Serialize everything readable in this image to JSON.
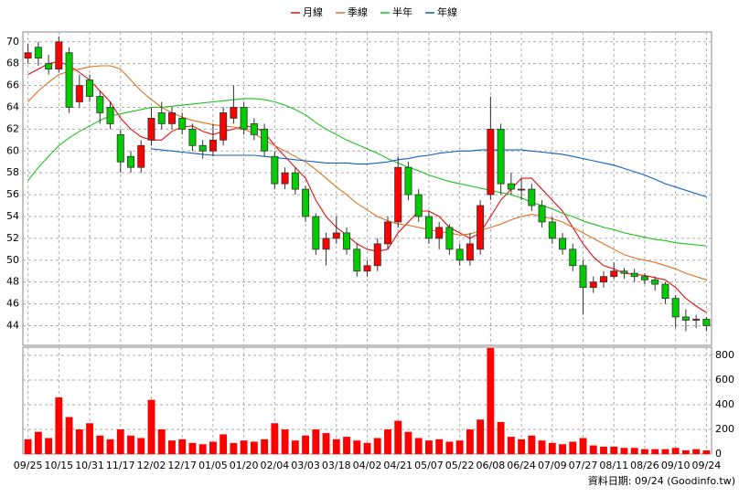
{
  "chart_data": {
    "type": "candlestick",
    "categories": [
      "09/25",
      null,
      null,
      "10/15",
      null,
      null,
      "10/31",
      null,
      null,
      "11/17",
      null,
      null,
      "12/02",
      null,
      null,
      "12/17",
      null,
      null,
      "01/05",
      null,
      null,
      "01/20",
      null,
      null,
      "02/04",
      null,
      null,
      "03/03",
      null,
      null,
      "03/18",
      null,
      null,
      "04/02",
      null,
      null,
      "04/21",
      null,
      null,
      "05/07",
      null,
      null,
      "05/22",
      null,
      null,
      "06/08",
      null,
      null,
      "06/24",
      null,
      null,
      "07/09",
      null,
      null,
      "07/27",
      null,
      null,
      "08/11",
      null,
      null,
      "08/26",
      null,
      null,
      "09/10",
      null,
      null,
      "09/24"
    ],
    "open": [
      68.5,
      69.5,
      68,
      67.5,
      69,
      64.5,
      66.5,
      65,
      64,
      61.5,
      59.5,
      58.5,
      61,
      63.5,
      62.5,
      63,
      62,
      60.5,
      60,
      61,
      63,
      64,
      62.5,
      62,
      59.5,
      57,
      58,
      56.5,
      54,
      51,
      52,
      52.5,
      51,
      49,
      49.5,
      51.5,
      53.5,
      58.5,
      56,
      54,
      52,
      53,
      51,
      50,
      51,
      56,
      62,
      57,
      56.5,
      56.5,
      55,
      53.5,
      52,
      51,
      49.5,
      47.5,
      48,
      48.5,
      49,
      48.8,
      48.5,
      48.2,
      47.8,
      46.5,
      44.8,
      44.5,
      44.6
    ],
    "high": [
      69.8,
      70,
      68.8,
      70.5,
      69.5,
      67,
      67,
      65.5,
      64.5,
      62,
      60,
      61,
      64,
      64.5,
      64,
      63.5,
      62.5,
      61,
      62.5,
      64,
      66,
      64.5,
      63,
      62.5,
      60,
      58.5,
      58.5,
      56.8,
      54.3,
      52.5,
      54,
      53,
      51.5,
      50,
      52,
      54,
      59.5,
      59,
      56.5,
      54.5,
      53.5,
      53.3,
      51.5,
      52.5,
      55.5,
      65,
      62.5,
      58,
      57.5,
      57,
      55.5,
      54,
      52.5,
      51.5,
      50,
      48.5,
      49,
      49.8,
      49.3,
      49.2,
      48.8,
      48.5,
      48,
      46.8,
      45.5,
      45,
      44.8
    ],
    "low": [
      68,
      67.8,
      67,
      67.2,
      63.5,
      64,
      64.5,
      62.5,
      62,
      58,
      58,
      58,
      60.5,
      62,
      62,
      61.5,
      60,
      59.3,
      59.5,
      60.5,
      62.5,
      61.5,
      61,
      59.5,
      56.5,
      56.5,
      56,
      53.5,
      50.5,
      49.5,
      51.5,
      50.5,
      48.5,
      48.5,
      49,
      51,
      53,
      55.5,
      53.5,
      51.5,
      51,
      50.5,
      49.5,
      49.5,
      50.5,
      55.5,
      56,
      56,
      55.5,
      54.5,
      53,
      51.5,
      50.5,
      49,
      45,
      47,
      47.5,
      48.3,
      48.3,
      48,
      47.8,
      47.2,
      46,
      43.8,
      43.5,
      43.8,
      43.5
    ],
    "close": [
      69,
      68.5,
      67.5,
      70,
      64,
      66,
      65,
      63.5,
      62.5,
      59,
      58.5,
      60.5,
      63,
      62.5,
      63.5,
      62,
      60.5,
      60,
      61,
      63.5,
      64,
      62,
      61.5,
      60,
      57,
      58,
      56.5,
      54,
      51,
      52,
      52.5,
      51,
      49,
      49.5,
      51.5,
      53.5,
      58.5,
      56,
      54,
      52,
      53,
      51,
      50,
      51.5,
      55,
      62,
      57,
      56.5,
      56.5,
      55,
      53.5,
      52,
      51,
      49.5,
      47.5,
      48,
      48.5,
      49,
      48.8,
      48.5,
      48.2,
      47.8,
      46.5,
      44.8,
      44.5,
      44.6,
      44
    ],
    "up_color": "#ff0000",
    "down_color": "#00cc00",
    "ylim": [
      42.2,
      70.9
    ],
    "yticks": [
      44,
      46,
      48,
      50,
      52,
      54,
      56,
      58,
      60,
      62,
      64,
      66,
      68,
      70
    ],
    "grid": true,
    "series": [
      {
        "name": "月線",
        "color": "#e01010",
        "values": [
          67,
          67.5,
          68,
          68.2,
          67.8,
          67.2,
          66.5,
          65.5,
          64.5,
          63,
          62,
          61.3,
          61,
          61,
          61.8,
          62.2,
          62.3,
          61.8,
          61.5,
          61.8,
          62,
          62.3,
          62.2,
          61.7,
          60.5,
          59.5,
          58.5,
          57.5,
          55.5,
          54,
          53,
          52.3,
          51.5,
          51,
          50.8,
          51,
          52.5,
          53.5,
          54.5,
          54.5,
          54,
          53,
          52.5,
          52,
          52.5,
          54,
          55.5,
          56.5,
          57.5,
          57.5,
          56.5,
          55.5,
          54.5,
          53,
          51.5,
          50.3,
          49.5,
          49.2,
          48.8,
          48.7,
          48.6,
          48.4,
          48.2,
          47.5,
          46.5,
          45.8,
          45.2
        ]
      },
      {
        "name": "季線",
        "color": "#e07020",
        "values": [
          64.5,
          65.5,
          66.3,
          67,
          67.3,
          67.5,
          67.7,
          67.8,
          67.8,
          67.5,
          66.5,
          65.5,
          64.7,
          64,
          63.5,
          63.1,
          62.8,
          62.6,
          62.4,
          62.3,
          62.2,
          62,
          61.6,
          61,
          60.5,
          60,
          59.5,
          59,
          58.3,
          57.5,
          56.7,
          56,
          55.2,
          54.6,
          54,
          53.6,
          53.3,
          53.2,
          53,
          52.8,
          52.6,
          52.5,
          52.3,
          52.4,
          52.7,
          53,
          53.3,
          53.7,
          54,
          54.2,
          54,
          53.8,
          53.5,
          53,
          52.5,
          52,
          51.5,
          51,
          50.5,
          50.2,
          50,
          49.8,
          49.5,
          49.2,
          48.8,
          48.5,
          48.2
        ]
      },
      {
        "name": "半年",
        "color": "#20c020",
        "values": [
          57.3,
          58.5,
          59.5,
          60.5,
          61.2,
          61.8,
          62.3,
          62.8,
          63.2,
          63.4,
          63.6,
          63.8,
          64,
          64,
          64.1,
          64.2,
          64.3,
          64.4,
          64.5,
          64.6,
          64.7,
          64.8,
          64.8,
          64.7,
          64.5,
          64.2,
          63.8,
          63.3,
          62.6,
          62,
          61.5,
          61,
          60.6,
          60.2,
          59.8,
          59.3,
          58.9,
          58.5,
          58.2,
          57.8,
          57.5,
          57.2,
          57,
          56.8,
          56.6,
          56.4,
          56.2,
          56,
          55.7,
          55.3,
          55,
          54.7,
          54.3,
          54,
          53.6,
          53.3,
          53,
          52.8,
          52.5,
          52.3,
          52.1,
          51.9,
          51.8,
          51.6,
          51.5,
          51.4,
          51.3
        ]
      },
      {
        "name": "年線",
        "color": "#1060c0",
        "values": [
          null,
          null,
          null,
          null,
          null,
          null,
          null,
          null,
          null,
          null,
          null,
          null,
          60.2,
          60.1,
          60,
          59.9,
          59.8,
          59.7,
          59.6,
          59.6,
          59.6,
          59.6,
          59.6,
          59.5,
          59.4,
          59.3,
          59.2,
          59.1,
          59,
          58.9,
          58.9,
          58.9,
          58.8,
          58.8,
          58.9,
          59,
          59.2,
          59.3,
          59.5,
          59.6,
          59.8,
          59.9,
          60,
          60,
          60.1,
          60.1,
          60.1,
          60.1,
          60.1,
          60,
          59.9,
          59.8,
          59.7,
          59.5,
          59.3,
          59.1,
          58.9,
          58.7,
          58.4,
          58.1,
          57.8,
          57.4,
          57,
          56.7,
          56.4,
          56.1,
          55.8
        ]
      }
    ],
    "volume": {
      "color": "#ff0000",
      "values": [
        120,
        180,
        130,
        460,
        300,
        200,
        250,
        150,
        120,
        200,
        150,
        130,
        440,
        200,
        110,
        120,
        90,
        80,
        100,
        160,
        90,
        110,
        100,
        120,
        250,
        200,
        110,
        150,
        200,
        170,
        120,
        140,
        110,
        90,
        130,
        200,
        270,
        180,
        130,
        110,
        120,
        100,
        110,
        200,
        280,
        860,
        260,
        140,
        120,
        150,
        110,
        90,
        80,
        100,
        130,
        70,
        60,
        60,
        50,
        50,
        40,
        40,
        40,
        50,
        30,
        40,
        30
      ],
      "ylim": [
        0,
        867
      ],
      "yticks": [
        0,
        200,
        400,
        600,
        800
      ]
    },
    "source_note": "資料日期: 09/24 (Goodinfo.tw)"
  }
}
